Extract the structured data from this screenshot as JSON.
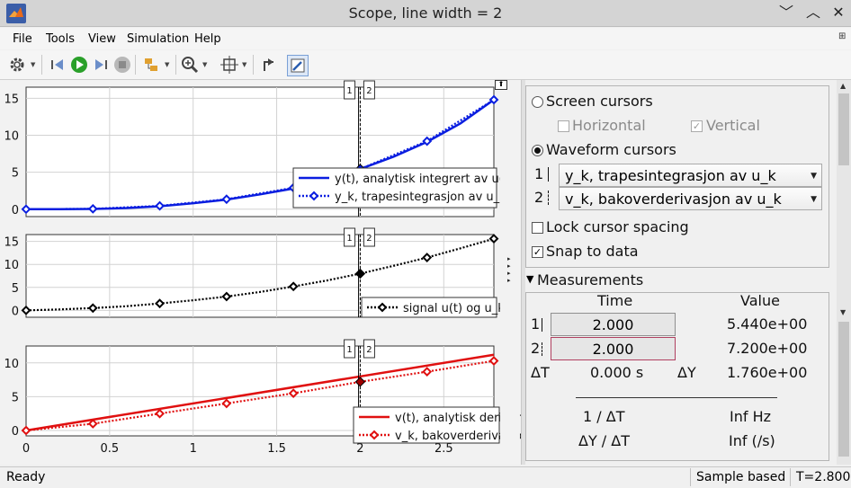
{
  "window": {
    "title": "Scope, line width = 2",
    "minimize": "﹀",
    "restore": "︿",
    "close": "✕"
  },
  "menu": [
    "File",
    "Tools",
    "View",
    "Simulation",
    "Help"
  ],
  "toolbar": {
    "icons": [
      "gear-icon",
      "step-back-icon",
      "run-icon",
      "step-forward-icon",
      "stop-icon",
      "highlight-icon",
      "zoom-icon",
      "fit-icon",
      "undock-icon",
      "style-icon"
    ]
  },
  "colors": {
    "blue": "#0a1ee0",
    "black": "#000000",
    "red": "#e01010",
    "cursor": "#000000"
  },
  "cursor_labels": [
    "1",
    "2"
  ],
  "chart_data": [
    {
      "type": "line",
      "x_ticks": [],
      "y_ticks": [
        "0",
        "5",
        "10",
        "15"
      ],
      "ylim": [
        -1,
        16.5
      ],
      "xlim": [
        0,
        2.8
      ],
      "grid": true,
      "legend_position": "bottom-right",
      "series": [
        {
          "name": "y(t), analytisk integrert av u(t)",
          "style": "solid",
          "color": "#0a1ee0",
          "x": [
            0,
            0.2,
            0.4,
            0.6,
            0.8,
            1.0,
            1.2,
            1.4,
            1.6,
            1.8,
            2.0,
            2.2,
            2.4,
            2.6,
            2.8
          ],
          "y": [
            0,
            0.01,
            0.04,
            0.15,
            0.4,
            0.8,
            1.3,
            2.0,
            2.8,
            4.0,
            5.44,
            7.1,
            9.1,
            11.6,
            14.8
          ]
        },
        {
          "name": "y_k, trapesintegrasjon av u_k",
          "style": "dotted",
          "color": "#0a1ee0",
          "marker": "diamond",
          "x": [
            0,
            0.4,
            0.8,
            1.2,
            1.6,
            2.0,
            2.4,
            2.8
          ],
          "y": [
            0,
            0.05,
            0.45,
            1.35,
            2.9,
            5.44,
            9.2,
            14.8
          ]
        }
      ]
    },
    {
      "type": "line",
      "x_ticks": [],
      "y_ticks": [
        "0",
        "5",
        "10",
        "15"
      ],
      "ylim": [
        -1.5,
        16.5
      ],
      "xlim": [
        0,
        2.8
      ],
      "grid": true,
      "legend_position": "bottom-right",
      "series": [
        {
          "name": "signal u(t) og u_k",
          "style": "dotted",
          "color": "#000000",
          "marker": "diamond",
          "x": [
            0,
            0.2,
            0.4,
            0.6,
            0.8,
            1.0,
            1.2,
            1.4,
            1.6,
            1.8,
            2.0,
            2.2,
            2.4,
            2.6,
            2.8
          ],
          "y": [
            0,
            0.2,
            0.5,
            0.9,
            1.5,
            2.2,
            3.0,
            4.0,
            5.2,
            6.5,
            8.0,
            9.7,
            11.5,
            13.5,
            15.6
          ]
        }
      ]
    },
    {
      "type": "line",
      "x_ticks": [
        "0",
        "0.5",
        "1",
        "1.5",
        "2",
        "2.5"
      ],
      "y_ticks": [
        "0",
        "5",
        "10"
      ],
      "ylim": [
        -0.8,
        12.5
      ],
      "xlim": [
        0,
        2.8
      ],
      "grid": true,
      "legend_position": "bottom-right",
      "series": [
        {
          "name": "v(t), analytisk derivert av u(t)",
          "style": "solid",
          "color": "#e01010",
          "x": [
            0,
            2.8
          ],
          "y": [
            0,
            11.2
          ]
        },
        {
          "name": "v_k, bakoverderivasjon av u_k",
          "style": "dotted",
          "color": "#e01010",
          "marker": "diamond",
          "x": [
            0,
            0.4,
            0.8,
            1.2,
            1.6,
            2.0,
            2.4,
            2.8
          ],
          "y": [
            0,
            1.0,
            2.5,
            4.0,
            5.5,
            7.2,
            8.7,
            10.3
          ]
        }
      ]
    }
  ],
  "cursors": {
    "c1_x": 1.99,
    "c2_x": 2.0
  },
  "settings": {
    "screen_cursors": "Screen cursors",
    "horizontal": "Horizontal",
    "vertical": "Vertical",
    "waveform_cursors": "Waveform cursors",
    "row1_num": "1",
    "row2_num": "2",
    "cursor1_signal": "y_k, trapesintegrasjon av u_k",
    "cursor2_signal": "v_k, bakoverderivasjon av u_k",
    "lock_spacing": "Lock cursor spacing",
    "snap_to_data": "Snap to data"
  },
  "measurements": {
    "title": "Measurements",
    "time_header": "Time",
    "value_header": "Value",
    "c1_label": "1",
    "c1_time": "2.000",
    "c1_value": "5.440e+00",
    "c2_label": "2",
    "c2_time": "2.000",
    "c2_value": "7.200e+00",
    "dt_label": "ΔT",
    "dt_value": "0.000 s",
    "dy_label": "ΔY",
    "dy_value": "1.760e+00",
    "inv_dt_label": "1 / ΔT",
    "inv_dt_value": "Inf Hz",
    "slope_label": "ΔY / ΔT",
    "slope_value": "Inf (/s)"
  },
  "status": {
    "ready": "Ready",
    "mode": "Sample based",
    "time": "T=2.800"
  }
}
